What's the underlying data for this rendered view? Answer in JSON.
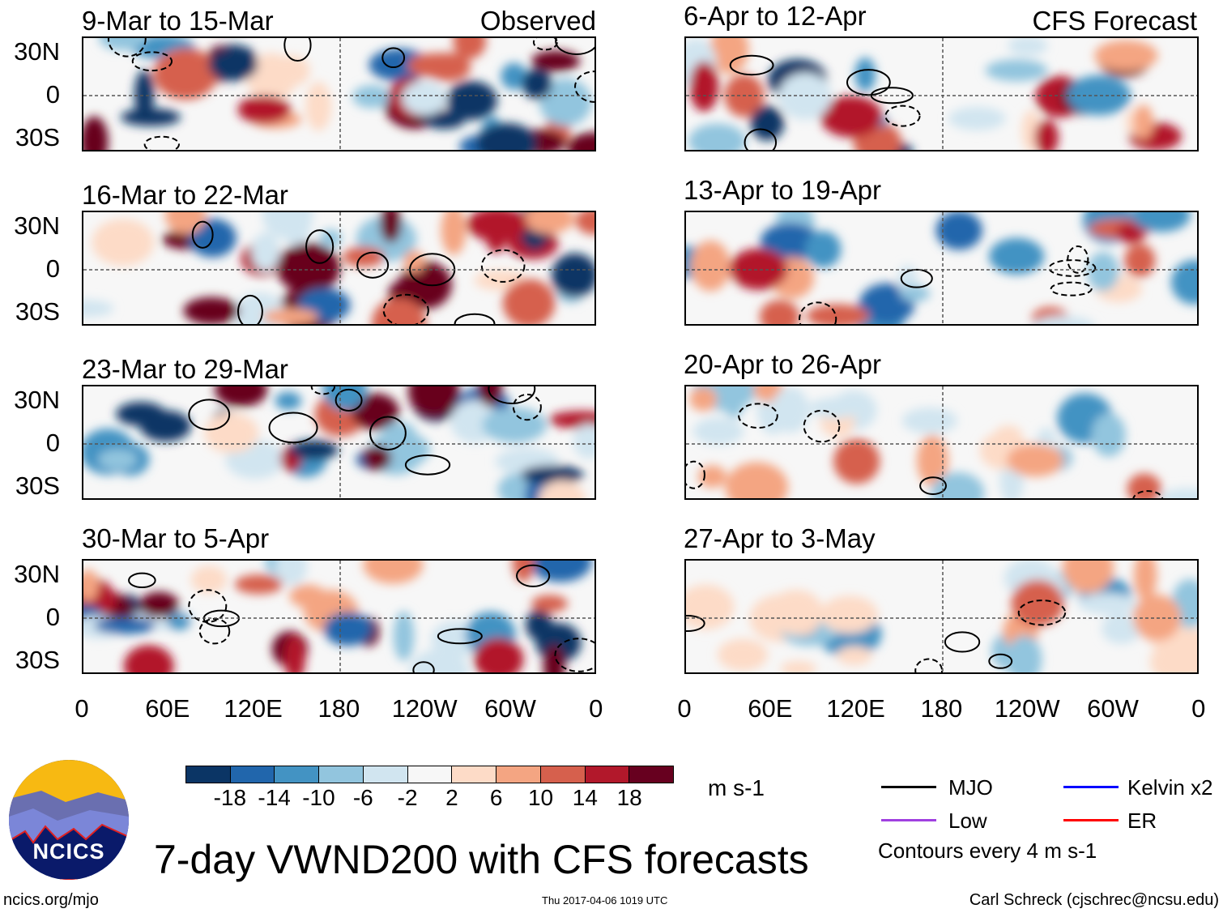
{
  "panels": {
    "observed": [
      {
        "title": "9-Mar to 15-Mar",
        "label": "Observed"
      },
      {
        "title": "16-Mar to 22-Mar"
      },
      {
        "title": "23-Mar to 29-Mar"
      },
      {
        "title": "30-Mar to 5-Apr"
      }
    ],
    "forecast": [
      {
        "title": "6-Apr to 12-Apr",
        "label": "CFS Forecast"
      },
      {
        "title": "13-Apr to 19-Apr"
      },
      {
        "title": "20-Apr to 26-Apr"
      },
      {
        "title": "27-Apr to 3-May"
      }
    ]
  },
  "axes": {
    "lat_labels": [
      "30N",
      "0",
      "30S"
    ],
    "lon_labels": [
      "0",
      "60E",
      "120E",
      "180",
      "120W",
      "60W",
      "0"
    ]
  },
  "colorbar": {
    "labels": [
      "-18",
      "-14",
      "-10",
      "-6",
      "-2",
      "2",
      "6",
      "10",
      "14",
      "18"
    ],
    "colors": [
      "#0b3565",
      "#2166ac",
      "#4393c3",
      "#92c5de",
      "#d1e5f0",
      "#f7f7f7",
      "#fddbc7",
      "#f4a582",
      "#d6604d",
      "#b2182b",
      "#67001f"
    ],
    "units": "m s-1"
  },
  "legend": {
    "items": [
      {
        "label": "MJO",
        "color": "#000000"
      },
      {
        "label": "Kelvin x2",
        "color": "#0000ff"
      },
      {
        "label": "Low",
        "color": "#a040e0"
      },
      {
        "label": "ER",
        "color": "#ff0000"
      }
    ],
    "note": "Contours every 4 m s-1"
  },
  "title": "7-day VWND200 with CFS forecasts",
  "logo": {
    "text": "NCICS"
  },
  "footer": {
    "url": "ncics.org/mjo",
    "timestamp": "Thu 2017-04-06 1019 UTC",
    "author": "Carl Schreck (cjschrec@ncsu.edu)"
  }
}
